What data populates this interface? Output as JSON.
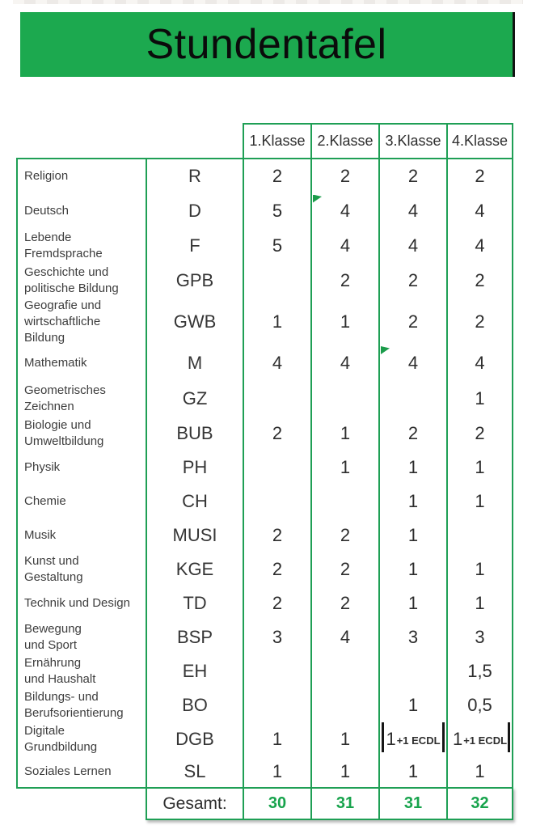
{
  "title": "Stundentafel",
  "colors": {
    "banner_green": "#1CA94F",
    "border_green": "#1F9F55",
    "totals_green": "#17A34C",
    "marker_green": "#1B9C4B",
    "text_dark": "#2d2d2d"
  },
  "table": {
    "class_headers": [
      "1.Klasse",
      "2.Klasse",
      "3.Klasse",
      "4.Klasse"
    ],
    "rows": [
      {
        "subject": "Religion",
        "abbr": "R",
        "values": [
          "2",
          "2",
          "2",
          "2"
        ]
      },
      {
        "subject": "Deutsch",
        "abbr": "D",
        "values": [
          "5",
          "4",
          "4",
          "4"
        ],
        "comment_marker_col": 1
      },
      {
        "subject": "Lebende\nFremdsprache",
        "abbr": "F",
        "values": [
          "5",
          "4",
          "4",
          "4"
        ]
      },
      {
        "subject": "Geschichte und\npolitische Bildung",
        "abbr": "GPB",
        "values": [
          "",
          "2",
          "2",
          "2"
        ]
      },
      {
        "subject": "Geografie und\nwirtschaftliche\nBildung",
        "abbr": "GWB",
        "values": [
          "1",
          "1",
          "2",
          "2"
        ]
      },
      {
        "subject": "Mathematik",
        "abbr": "M",
        "values": [
          "4",
          "4",
          "4",
          "4"
        ],
        "comment_marker_col": 2
      },
      {
        "subject": "Geometrisches\nZeichnen",
        "abbr": "GZ",
        "values": [
          "",
          "",
          "",
          "1"
        ]
      },
      {
        "subject": "Biologie und\nUmweltbildung",
        "abbr": "BUB",
        "values": [
          "2",
          "1",
          "2",
          "2"
        ]
      },
      {
        "subject": "Physik",
        "abbr": "PH",
        "values": [
          "",
          "1",
          "1",
          "1"
        ]
      },
      {
        "subject": "Chemie",
        "abbr": "CH",
        "values": [
          "",
          "",
          "1",
          "1"
        ]
      },
      {
        "subject": "Musik",
        "abbr": "MUSI",
        "values": [
          "2",
          "2",
          "1",
          ""
        ]
      },
      {
        "subject": "Kunst und\nGestaltung",
        "abbr": "KGE",
        "values": [
          "2",
          "2",
          "1",
          "1"
        ]
      },
      {
        "subject": "Technik und Design",
        "abbr": "TD",
        "values": [
          "2",
          "2",
          "1",
          "1"
        ]
      },
      {
        "subject": "Bewegung\nund Sport",
        "abbr": "BSP",
        "values": [
          "3",
          "4",
          "3",
          "3"
        ]
      },
      {
        "subject": "Ernährung\nund Haushalt",
        "abbr": "EH",
        "values": [
          "",
          "",
          "",
          "1,5"
        ]
      },
      {
        "subject": "Bildungs- und\nBerufsorientierung",
        "abbr": "BO",
        "values": [
          "",
          "",
          "1",
          "0,5"
        ]
      },
      {
        "subject": "Digitale\nGrundbildung",
        "abbr": "DGB",
        "values": [
          "1",
          "1",
          "1",
          "1"
        ],
        "value_suffix": {
          "2": "+1 ECDL",
          "3": "+1 ECDL"
        },
        "highlight_bars": {
          "2": [
            "left",
            "right"
          ],
          "3": [
            "right"
          ]
        }
      },
      {
        "subject": "Soziales Lernen",
        "abbr": "SL",
        "values": [
          "1",
          "1",
          "1",
          "1"
        ]
      }
    ],
    "totals": {
      "label": "Gesamt:",
      "values": [
        "30",
        "31",
        "31",
        "32"
      ]
    }
  }
}
